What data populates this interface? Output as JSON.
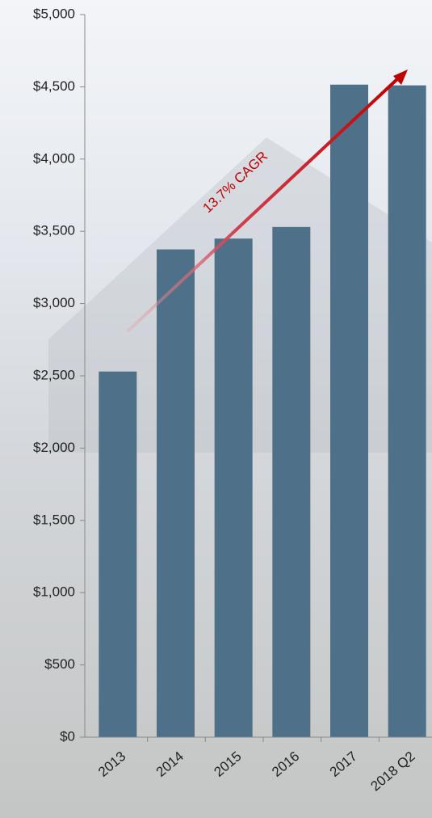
{
  "chart_data": {
    "type": "bar",
    "categories": [
      "2013",
      "2014",
      "2015",
      "2016",
      "2017",
      "2018 Q2"
    ],
    "values": [
      2530,
      3375,
      3450,
      3530,
      4515,
      4510
    ],
    "color": "#4e7189",
    "ylim": [
      0,
      5000
    ],
    "yticks": [
      {
        "value": 0,
        "label": "$0"
      },
      {
        "value": 500,
        "label": "$500"
      },
      {
        "value": 1000,
        "label": "$1,000"
      },
      {
        "value": 1500,
        "label": "$1,500"
      },
      {
        "value": 2000,
        "label": "$2,000"
      },
      {
        "value": 2500,
        "label": "$2,500"
      },
      {
        "value": 3000,
        "label": "$3,000"
      },
      {
        "value": 3500,
        "label": "$3,500"
      },
      {
        "value": 4000,
        "label": "$4,000"
      },
      {
        "value": 4500,
        "label": "$4,500"
      },
      {
        "value": 5000,
        "label": "$5,000"
      }
    ],
    "grid": false,
    "annotation": {
      "text": "13.7% CAGR",
      "color": "#c00000"
    }
  }
}
